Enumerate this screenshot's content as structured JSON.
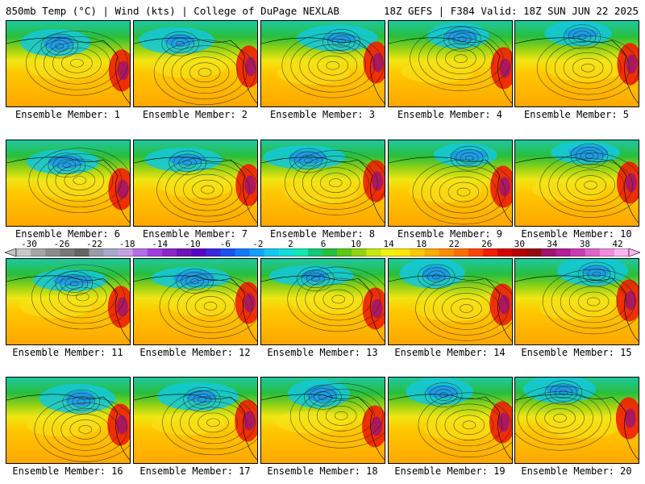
{
  "header": {
    "title_left": "850mb Temp (°C) | Wind (kts) | College of DuPage NEXLAB",
    "title_right": "18Z GEFS | F384 Valid: 18Z SUN JUN 22 2025"
  },
  "colorbar": {
    "labels": [
      "-30",
      "-26",
      "-22",
      "-18",
      "-14",
      "-10",
      "-6",
      "-2",
      "2",
      "6",
      "10",
      "14",
      "18",
      "22",
      "26",
      "30",
      "34",
      "38",
      "42"
    ],
    "colors": [
      "#c8c8c8",
      "#a6a6a6",
      "#8c8c8c",
      "#787878",
      "#646464",
      "#9a9aa8",
      "#a8a8c8",
      "#c8a0e6",
      "#b46ee6",
      "#a040dc",
      "#8c28c8",
      "#6e14b4",
      "#5a00c8",
      "#3c28dc",
      "#1e50f0",
      "#1478ff",
      "#14a0ff",
      "#14c8f0",
      "#14dcdc",
      "#14e6b4",
      "#14c878",
      "#28be3c",
      "#5ac814",
      "#96d214",
      "#c8e614",
      "#f0f014",
      "#ffe600",
      "#ffc800",
      "#ffaa00",
      "#ff8c00",
      "#ff6e00",
      "#ff4600",
      "#f01e00",
      "#d20000",
      "#b40000",
      "#960a14",
      "#a0146e",
      "#b41e96",
      "#c83cb4",
      "#dc64c8",
      "#f08cdc",
      "#ffb4f0"
    ]
  },
  "members": [
    {
      "label": "Ensemble Member: 1"
    },
    {
      "label": "Ensemble Member: 2"
    },
    {
      "label": "Ensemble Member: 3"
    },
    {
      "label": "Ensemble Member: 4"
    },
    {
      "label": "Ensemble Member: 5"
    },
    {
      "label": "Ensemble Member: 6"
    },
    {
      "label": "Ensemble Member: 7"
    },
    {
      "label": "Ensemble Member: 8"
    },
    {
      "label": "Ensemble Member: 9"
    },
    {
      "label": "Ensemble Member: 10"
    },
    {
      "label": "Ensemble Member: 11"
    },
    {
      "label": "Ensemble Member: 12"
    },
    {
      "label": "Ensemble Member: 13"
    },
    {
      "label": "Ensemble Member: 14"
    },
    {
      "label": "Ensemble Member: 15"
    },
    {
      "label": "Ensemble Member: 16"
    },
    {
      "label": "Ensemble Member: 17"
    },
    {
      "label": "Ensemble Member: 18"
    },
    {
      "label": "Ensemble Member: 19"
    },
    {
      "label": "Ensemble Member: 20"
    }
  ]
}
